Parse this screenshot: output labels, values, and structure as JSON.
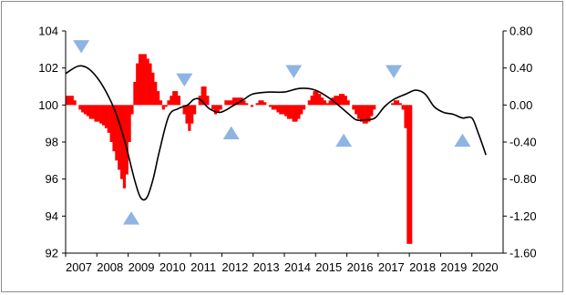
{
  "chart_data": {
    "type": "bar+line",
    "title": "",
    "xlabel": "",
    "ylabel": "",
    "left_axis": {
      "ylim": [
        92,
        104
      ],
      "ticks": [
        92,
        94,
        96,
        98,
        100,
        102,
        104
      ],
      "tick_labels": [
        "92",
        "94",
        "96",
        "98",
        "100",
        "102",
        "104"
      ]
    },
    "right_axis": {
      "ylim": [
        -1.6,
        0.8
      ],
      "ticks": [
        -1.6,
        -1.2,
        -0.8,
        -0.4,
        0.0,
        0.4,
        0.8
      ],
      "tick_labels": [
        "-1.60",
        "-1.20",
        "-0.80",
        "-0.40",
        "0.00",
        "0.40",
        "0.80"
      ]
    },
    "x_axis": {
      "range": [
        2007,
        2021
      ],
      "years": [
        2007,
        2008,
        2009,
        2010,
        2011,
        2012,
        2013,
        2014,
        2015,
        2016,
        2017,
        2018,
        2019,
        2020
      ],
      "tick_labels": [
        "2007",
        "2008",
        "2009",
        "2010",
        "2011",
        "2012",
        "2013",
        "2014",
        "2015",
        "2016",
        "2017",
        "2018",
        "2019",
        "2020"
      ]
    },
    "grid": false,
    "colors": {
      "bars": "#ff0000",
      "line": "#000000",
      "markers": "#8eb4e3",
      "axis": "#000000",
      "border": "#8c8c8c"
    },
    "bars_axis": "right",
    "bars_monthly": [
      0.1,
      0.1,
      0.1,
      0.05,
      0.0,
      -0.05,
      -0.08,
      -0.1,
      -0.12,
      -0.15,
      -0.15,
      -0.18,
      -0.18,
      -0.2,
      -0.22,
      -0.25,
      -0.3,
      -0.4,
      -0.5,
      -0.6,
      -0.7,
      -0.8,
      -0.9,
      -0.75,
      -0.4,
      -0.1,
      0.25,
      0.45,
      0.55,
      0.55,
      0.55,
      0.5,
      0.45,
      0.35,
      0.25,
      0.15,
      0.05,
      -0.05,
      -0.02,
      0.05,
      0.1,
      0.15,
      0.15,
      0.1,
      0.0,
      -0.1,
      -0.2,
      -0.28,
      -0.2,
      -0.1,
      0.0,
      0.1,
      0.2,
      0.2,
      0.1,
      0.0,
      -0.05,
      -0.1,
      -0.08,
      -0.05,
      0.0,
      0.05,
      0.05,
      0.05,
      0.08,
      0.08,
      0.08,
      0.08,
      0.05,
      0.02,
      0.0,
      -0.02,
      0.0,
      0.02,
      0.05,
      0.05,
      0.03,
      0.0,
      -0.02,
      -0.05,
      -0.05,
      -0.08,
      -0.1,
      -0.1,
      -0.12,
      -0.15,
      -0.15,
      -0.18,
      -0.18,
      -0.15,
      -0.1,
      -0.05,
      0.0,
      0.05,
      0.1,
      0.15,
      0.15,
      0.12,
      0.08,
      0.05,
      0.02,
      0.05,
      0.08,
      0.1,
      0.1,
      0.12,
      0.12,
      0.1,
      0.05,
      0.0,
      -0.05,
      -0.1,
      -0.15,
      -0.18,
      -0.2,
      -0.2,
      -0.18,
      -0.12,
      -0.05,
      0.0,
      0.0,
      0.0,
      0.0,
      0.0,
      0.0,
      0.02,
      0.05,
      0.05,
      0.02,
      -0.05,
      -0.25,
      -1.5,
      -1.5
    ],
    "line_axis": "left",
    "line": {
      "x": [
        2007.0,
        2007.4,
        2007.7,
        2008.0,
        2008.3,
        2008.6,
        2008.9,
        2009.2,
        2009.4,
        2009.6,
        2009.8,
        2010.0,
        2010.3,
        2010.6,
        2010.9,
        2011.1,
        2011.3,
        2011.6,
        2011.9,
        2012.1,
        2012.3,
        2012.7,
        2013.0,
        2013.5,
        2014.0,
        2014.5,
        2015.0,
        2015.5,
        2016.0,
        2016.3,
        2016.6,
        2016.9,
        2017.2,
        2017.5,
        2017.9,
        2018.2,
        2018.5,
        2018.8,
        2019.1,
        2019.4,
        2019.7,
        2020.0,
        2020.2,
        2020.35,
        2020.45
      ],
      "y": [
        101.7,
        102.1,
        102.0,
        101.5,
        100.7,
        99.6,
        98.0,
        96.0,
        95.0,
        95.0,
        96.0,
        97.5,
        99.4,
        99.8,
        100.0,
        100.3,
        100.3,
        99.8,
        99.6,
        99.7,
        99.9,
        100.3,
        100.6,
        100.7,
        100.7,
        100.9,
        100.8,
        100.3,
        99.6,
        99.2,
        99.2,
        99.3,
        99.9,
        100.3,
        100.6,
        100.8,
        100.6,
        99.9,
        99.6,
        99.5,
        99.3,
        99.3,
        98.5,
        97.8,
        97.3
      ]
    },
    "markers": {
      "down_triangles": [
        {
          "x": 2007.5,
          "y_right": 0.63
        },
        {
          "x": 2010.8,
          "y_right": 0.27
        },
        {
          "x": 2014.3,
          "y_right": 0.36
        },
        {
          "x": 2017.5,
          "y_right": 0.36
        }
      ],
      "up_triangles": [
        {
          "x": 2009.1,
          "y_right": -1.22
        },
        {
          "x": 2012.3,
          "y_right": -0.3
        },
        {
          "x": 2015.9,
          "y_right": -0.38
        },
        {
          "x": 2019.7,
          "y_right": -0.38
        }
      ]
    }
  }
}
